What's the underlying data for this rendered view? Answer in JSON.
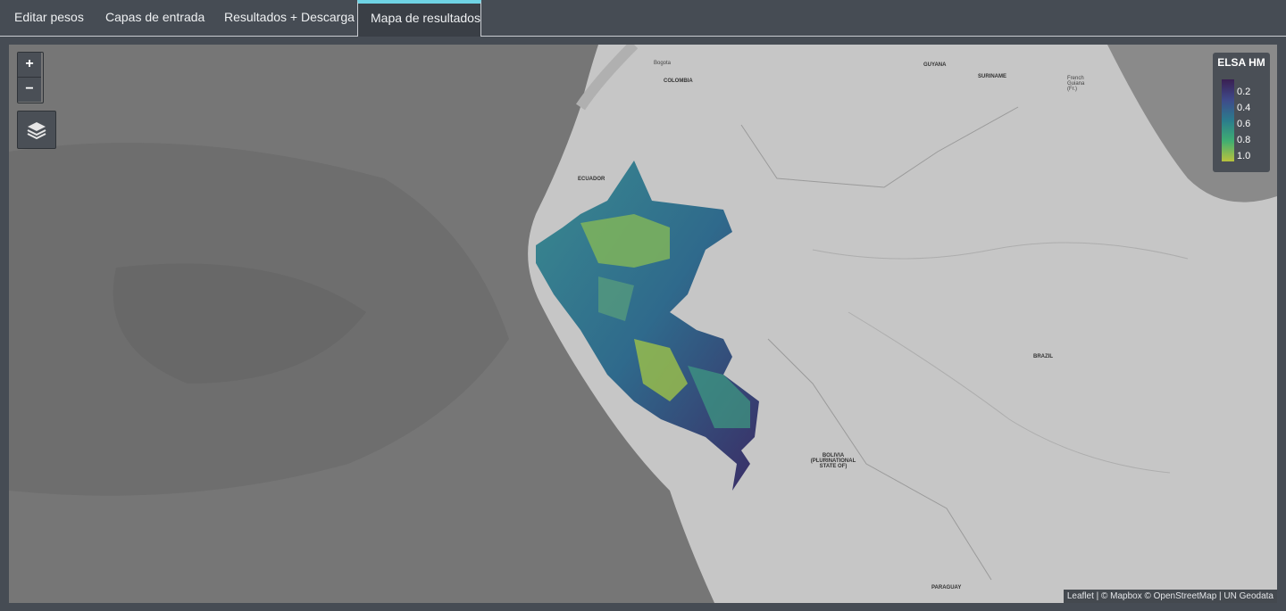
{
  "tabs": [
    {
      "label": "Editar pesos",
      "active": false
    },
    {
      "label": "Capas de entrada",
      "active": false
    },
    {
      "label": "Resultados + Descarga",
      "active": false
    },
    {
      "label": "Mapa de resultados",
      "active": true
    }
  ],
  "map": {
    "zoom_in_label": "+",
    "zoom_out_label": "−",
    "layers_icon": "layers-icon",
    "legend": {
      "title": "ELSA HM",
      "ticks": [
        "0.2",
        "0.4",
        "0.6",
        "0.8",
        "1.0"
      ]
    },
    "attribution": "Leaflet | © Mapbox © OpenStreetMap | UN Geodata",
    "country_labels": [
      "COLOMBIA",
      "GUYANA",
      "SURINAME",
      "French Guiana (Fr.)",
      "ECUADOR",
      "BRAZIL",
      "BOLIVIA (PLURINATIONAL STATE OF)",
      "PARAGUAY"
    ],
    "city_labels": [
      "Bogota"
    ],
    "colors": {
      "accent": "#6fd3e4",
      "ocean": "#7a7a7a",
      "land": "#c8c8c8"
    }
  }
}
